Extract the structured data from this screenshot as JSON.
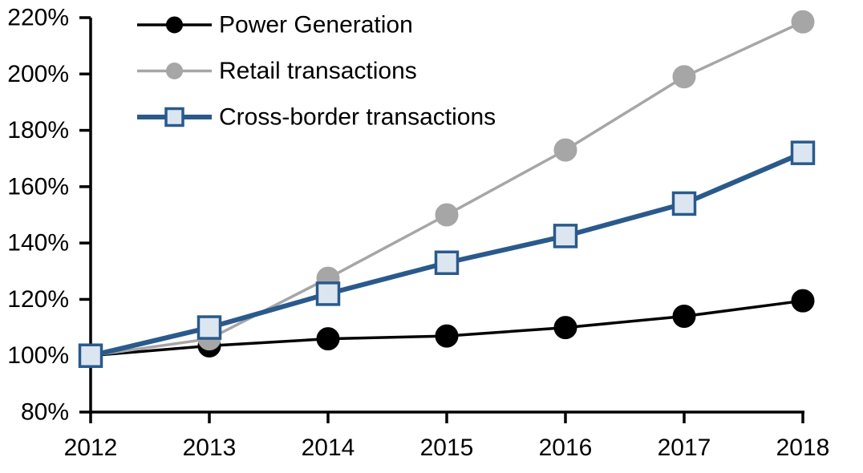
{
  "chart_data": {
    "type": "line",
    "title": "",
    "xlabel": "",
    "ylabel": "",
    "categories": [
      "2012",
      "2013",
      "2014",
      "2015",
      "2016",
      "2017",
      "2018"
    ],
    "series": [
      {
        "name": "Power Generation",
        "values": [
          100,
          103.5,
          106,
          107,
          110,
          114,
          119.5
        ],
        "line_color": "#000000",
        "marker": "circle",
        "marker_fill": "#000000",
        "marker_border": "#000000",
        "line_width": 3.5
      },
      {
        "name": "Retail transactions",
        "values": [
          100,
          106,
          127.5,
          150,
          173,
          199,
          218.5
        ],
        "line_color": "#A6A6A6",
        "marker": "circle",
        "marker_fill": "#A6A6A6",
        "marker_border": "#A6A6A6",
        "line_width": 3.5
      },
      {
        "name": "Cross-border transactions",
        "values": [
          100,
          110,
          122,
          133,
          142.5,
          154,
          172
        ],
        "line_color": "#2A5A8C",
        "marker": "square",
        "marker_fill": "#DCE6F1",
        "marker_border": "#2A5A8C",
        "line_width": 6
      }
    ],
    "y_axis": {
      "min": 80,
      "max": 220,
      "step": 20,
      "format": "percent"
    },
    "y_tick_labels": [
      "80%",
      "100%",
      "120%",
      "140%",
      "160%",
      "180%",
      "200%",
      "220%"
    ],
    "x_tick_labels": [
      "2012",
      "2013",
      "2014",
      "2015",
      "2016",
      "2017",
      "2018"
    ],
    "grid": false,
    "legend_position": "top-left",
    "axis_color": "#000000",
    "background_color": "#FFFFFF"
  }
}
